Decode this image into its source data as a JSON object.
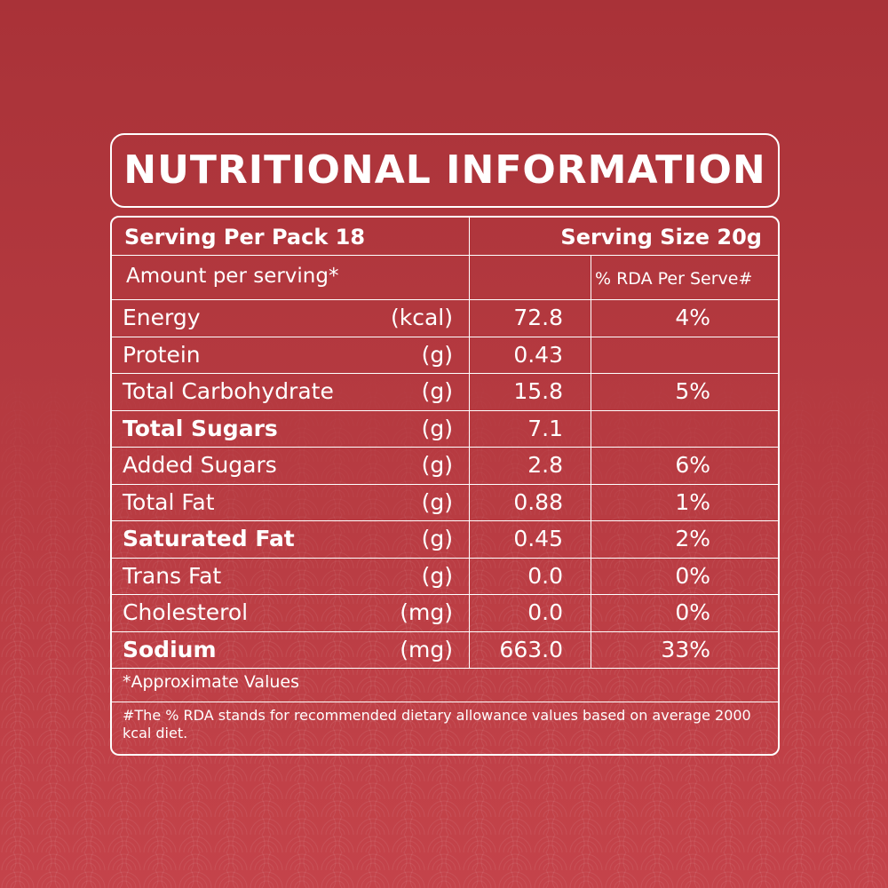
{
  "title": "NUTRITIONAL INFORMATION",
  "serving_per_pack": "Serving Per Pack 18",
  "serving_size": "Serving Size 20g",
  "amount_per_serving": "Amount per serving*",
  "rda_header": "% RDA Per Serve#",
  "rows": [
    {
      "nutrient": "Energy",
      "unit": "(kcal)",
      "amount": "72.8",
      "rda": "4%",
      "bold": false
    },
    {
      "nutrient": "Protein",
      "unit": "(g)",
      "amount": "0.43",
      "bold": false
    },
    {
      "nutrient": "Total Carbohydrate",
      "unit": "(g)",
      "amount": "15.8",
      "rda": "5%",
      "bold": false
    },
    {
      "nutrient": "Total Sugars",
      "unit": "(g)",
      "amount": "7.1",
      "bold": true
    },
    {
      "nutrient": "Added Sugars",
      "unit": "(g)",
      "amount": "2.8",
      "rda": "6%",
      "bold": false
    },
    {
      "nutrient": "Total Fat",
      "unit": "(g)",
      "amount": "0.88",
      "rda": "1%",
      "bold": false
    },
    {
      "nutrient": "Saturated Fat",
      "unit": "(g)",
      "amount": "0.45",
      "rda": "2%",
      "bold": true
    },
    {
      "nutrient": "Trans Fat",
      "unit": "(g)",
      "amount": "0.0",
      "rda": "0%",
      "bold": false
    },
    {
      "nutrient": "Cholesterol",
      "unit": "(mg)",
      "amount": "0.0",
      "rda": "0%",
      "bold": false
    },
    {
      "nutrient": "Sodium",
      "unit": "(mg)",
      "amount": "663.0",
      "rda": "33%",
      "bold": true
    }
  ],
  "footnotes": [
    "*Approximate Values",
    "#The % RDA stands for recommended dietary allowance values based on average 2000 kcal diet."
  ]
}
